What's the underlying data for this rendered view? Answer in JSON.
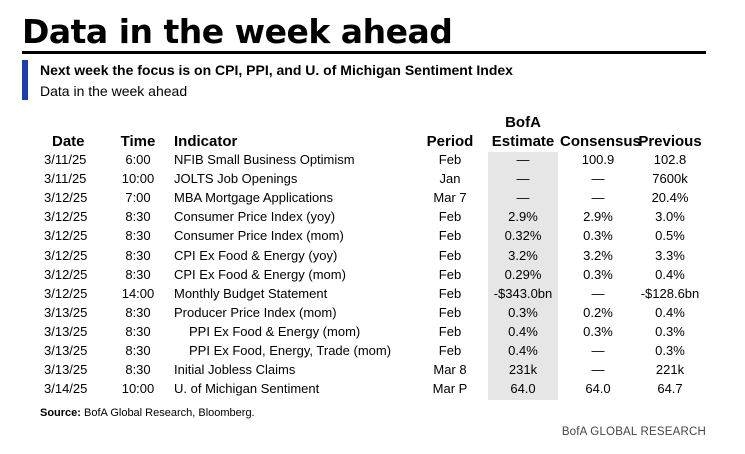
{
  "title": "Data in the week ahead",
  "subtitle": "Next week the focus is on CPI, PPI, and U. of Michigan Sentiment Index",
  "subtitle2": "Data in the week ahead",
  "headers": {
    "date": "Date",
    "time": "Time",
    "indicator": "Indicator",
    "period": "Period",
    "estimate_top": "BofA",
    "estimate_bottom": "Estimate",
    "consensus": "Consensus",
    "previous": "Previous"
  },
  "rows": [
    {
      "date": "3/11/25",
      "time": "6:00",
      "indicator": "NFIB Small Business Optimism",
      "period": "Feb",
      "estimate": "—",
      "consensus": "100.9",
      "previous": "102.8",
      "indent": false
    },
    {
      "date": "3/11/25",
      "time": "10:00",
      "indicator": "JOLTS Job Openings",
      "period": "Jan",
      "estimate": "—",
      "consensus": "—",
      "previous": "7600k",
      "indent": false
    },
    {
      "date": "3/12/25",
      "time": "7:00",
      "indicator": "MBA Mortgage Applications",
      "period": "Mar 7",
      "estimate": "—",
      "consensus": "—",
      "previous": "20.4%",
      "indent": false
    },
    {
      "date": "3/12/25",
      "time": "8:30",
      "indicator": "Consumer Price Index (yoy)",
      "period": "Feb",
      "estimate": "2.9%",
      "consensus": "2.9%",
      "previous": "3.0%",
      "indent": false
    },
    {
      "date": "3/12/25",
      "time": "8:30",
      "indicator": "Consumer Price Index (mom)",
      "period": "Feb",
      "estimate": "0.32%",
      "consensus": "0.3%",
      "previous": "0.5%",
      "indent": false
    },
    {
      "date": "3/12/25",
      "time": "8:30",
      "indicator": "CPI Ex Food & Energy (yoy)",
      "period": "Feb",
      "estimate": "3.2%",
      "consensus": "3.2%",
      "previous": "3.3%",
      "indent": false
    },
    {
      "date": "3/12/25",
      "time": "8:30",
      "indicator": "CPI Ex Food & Energy (mom)",
      "period": "Feb",
      "estimate": "0.29%",
      "consensus": "0.3%",
      "previous": "0.4%",
      "indent": false
    },
    {
      "date": "3/12/25",
      "time": "14:00",
      "indicator": "Monthly Budget Statement",
      "period": "Feb",
      "estimate": "-$343.0bn",
      "consensus": "—",
      "previous": "-$128.6bn",
      "indent": false
    },
    {
      "date": "3/13/25",
      "time": "8:30",
      "indicator": "Producer Price Index (mom)",
      "period": "Feb",
      "estimate": "0.3%",
      "consensus": "0.2%",
      "previous": "0.4%",
      "indent": false
    },
    {
      "date": "3/13/25",
      "time": "8:30",
      "indicator": "PPI Ex Food & Energy (mom)",
      "period": "Feb",
      "estimate": "0.4%",
      "consensus": "0.3%",
      "previous": "0.3%",
      "indent": true
    },
    {
      "date": "3/13/25",
      "time": "8:30",
      "indicator": "PPI Ex Food, Energy, Trade (mom)",
      "period": "Feb",
      "estimate": "0.4%",
      "consensus": "—",
      "previous": "0.3%",
      "indent": true
    },
    {
      "date": "3/13/25",
      "time": "8:30",
      "indicator": "Initial Jobless Claims",
      "period": "Mar 8",
      "estimate": "231k",
      "consensus": "—",
      "previous": "221k",
      "indent": false
    },
    {
      "date": "3/14/25",
      "time": "10:00",
      "indicator": "U. of Michigan Sentiment",
      "period": "Mar P",
      "estimate": "64.0",
      "consensus": "64.0",
      "previous": "64.7",
      "indent": false
    }
  ],
  "source_label": "Source:",
  "source_text": " BofA Global Research, Bloomberg.",
  "brand": "BofA GLOBAL RESEARCH",
  "colors": {
    "accent_bar": "#1a3fa8",
    "estimate_shade": "#e6e6e6"
  }
}
